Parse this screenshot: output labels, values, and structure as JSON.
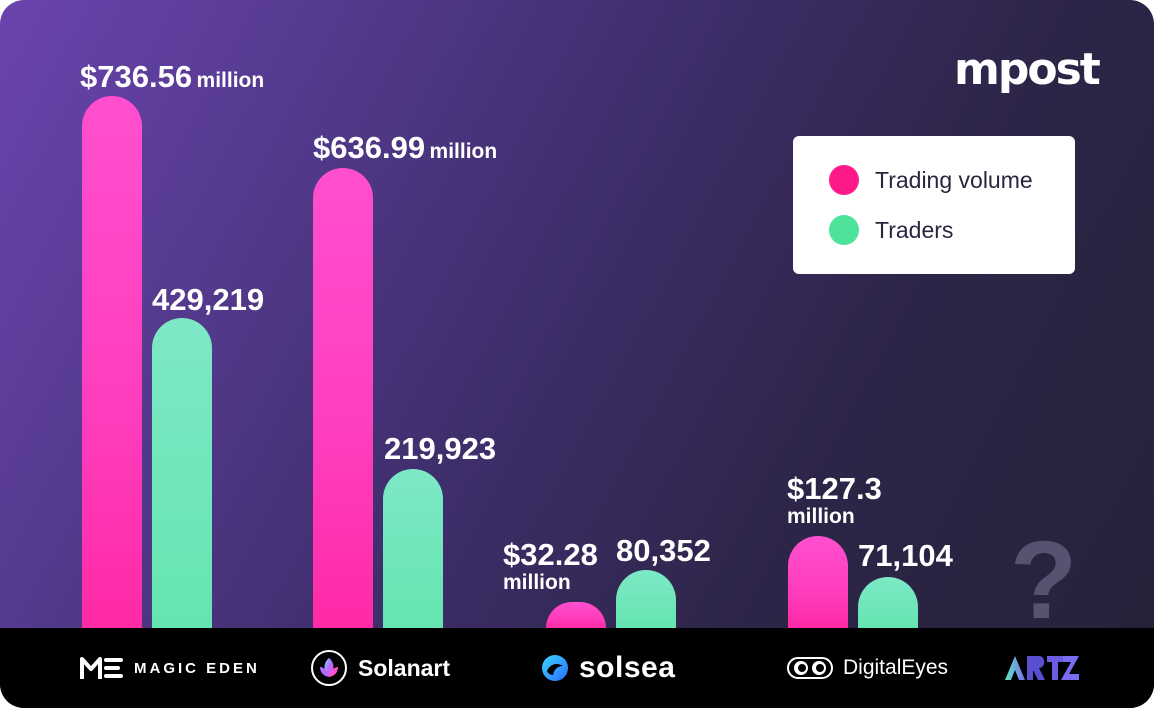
{
  "brand": {
    "name": "mpost"
  },
  "legend": [
    {
      "label": "Trading volume",
      "color": "#ff1a8c"
    },
    {
      "label": "Traders",
      "color": "#4de39a"
    }
  ],
  "chart_data": {
    "type": "bar",
    "title": "",
    "xlabel": "",
    "ylabel": "",
    "categories": [
      "MAGIC EDEN",
      "Solanart",
      "solsea",
      "DigitalEyes",
      "ARTZ"
    ],
    "series": [
      {
        "name": "Trading volume",
        "unit": "million",
        "values": [
          736.56,
          636.99,
          32.28,
          127.3,
          null
        ],
        "labels": [
          {
            "num": "$736.56",
            "unit": "million"
          },
          {
            "num": "$636.99",
            "unit": "million"
          },
          {
            "num": "$32.28",
            "unit": "million"
          },
          {
            "num": "$127.3",
            "unit": "million"
          },
          null
        ]
      },
      {
        "name": "Traders",
        "values": [
          429219,
          219923,
          80352,
          71104,
          null
        ],
        "labels": [
          "429,219",
          "219,923",
          "80,352",
          "71,104",
          null
        ]
      }
    ],
    "unknown_marker": "?",
    "legend_position": "top-right",
    "grid": false
  },
  "footer": {
    "logos": [
      {
        "name": "MAGIC EDEN",
        "icon": "magic-eden-logo-icon"
      },
      {
        "name": "Solanart",
        "icon": "solanart-logo-icon"
      },
      {
        "name": "solsea",
        "icon": "solsea-logo-icon"
      },
      {
        "name": "DigitalEyes",
        "icon": "digitaleyes-logo-icon"
      },
      {
        "name": "ARTZ",
        "icon": "artz-logo-icon"
      }
    ]
  }
}
